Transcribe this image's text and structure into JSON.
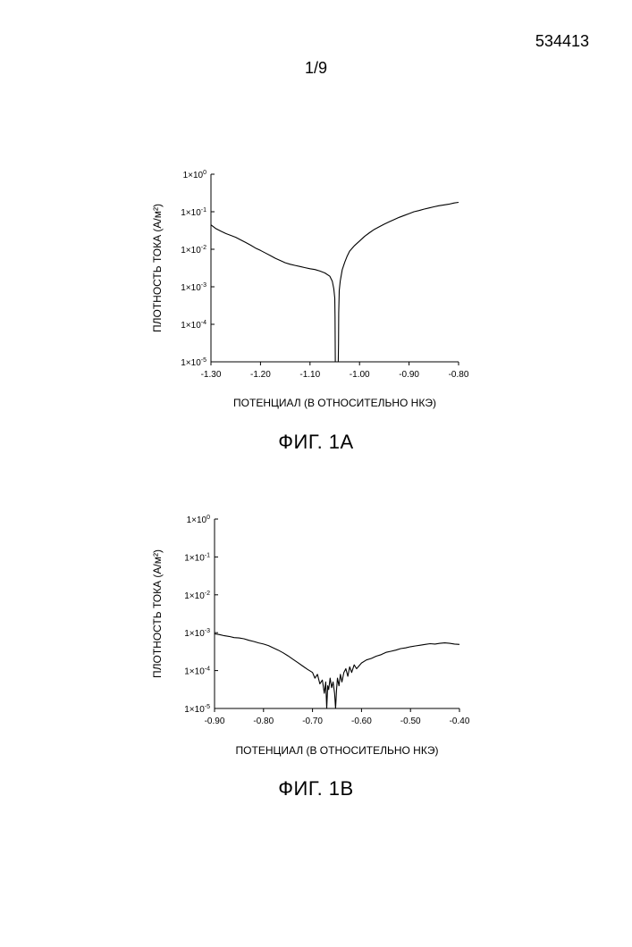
{
  "header": {
    "doc_number": "534413",
    "sheet": "1/9"
  },
  "chart_data": [
    {
      "type": "line",
      "caption": "ФИГ. 1А",
      "xlabel": "ПОТЕНЦИАЛ (В ОТНОСИТЕЛЬНО НКЭ)",
      "ylabel": "ПЛОТНОСТЬ ТОКА (А/м²)",
      "xlim": [
        -1.3,
        -0.8
      ],
      "ylim_log10": [
        -5,
        0
      ],
      "y_scale": "log",
      "x_ticks": [
        "-1.30",
        "-1.20",
        "-1.10",
        "-1.00",
        "-0.90",
        "-0.80"
      ],
      "x_tick_values": [
        -1.3,
        -1.2,
        -1.1,
        -1.0,
        -0.9,
        -0.8
      ],
      "y_ticks": [
        {
          "base": "1×10",
          "exp": "0",
          "value": 0
        },
        {
          "base": "1×10",
          "exp": "-1",
          "value": -1
        },
        {
          "base": "1×10",
          "exp": "-2",
          "value": -2
        },
        {
          "base": "1×10",
          "exp": "-3",
          "value": -3
        },
        {
          "base": "1×10",
          "exp": "-4",
          "value": -4
        },
        {
          "base": "1×10",
          "exp": "-5",
          "value": -5
        }
      ],
      "grid": false,
      "series": [
        {
          "x": [
            -1.3,
            -1.29,
            -1.28,
            -1.27,
            -1.26,
            -1.25,
            -1.24,
            -1.23,
            -1.22,
            -1.21,
            -1.2,
            -1.19,
            -1.18,
            -1.17,
            -1.16,
            -1.15,
            -1.14,
            -1.13,
            -1.12,
            -1.11,
            -1.1,
            -1.09,
            -1.08,
            -1.07,
            -1.06,
            -1.055,
            -1.052,
            -1.05,
            -1.0495,
            -1.049,
            -1.0485,
            -1.045,
            -1.043,
            -1.0425,
            -1.042,
            -1.041,
            -1.039,
            -1.037,
            -1.035,
            -1.03,
            -1.025,
            -1.02,
            -1.01,
            -1.0,
            -0.99,
            -0.98,
            -0.97,
            -0.96,
            -0.95,
            -0.94,
            -0.93,
            -0.92,
            -0.91,
            -0.9,
            -0.89,
            -0.88,
            -0.87,
            -0.86,
            -0.85,
            -0.84,
            -0.83,
            -0.82,
            -0.81,
            -0.8
          ],
          "y_log10": [
            -1.35,
            -1.45,
            -1.52,
            -1.58,
            -1.63,
            -1.68,
            -1.75,
            -1.82,
            -1.89,
            -1.97,
            -2.03,
            -2.1,
            -2.17,
            -2.24,
            -2.3,
            -2.36,
            -2.4,
            -2.43,
            -2.46,
            -2.49,
            -2.52,
            -2.54,
            -2.58,
            -2.63,
            -2.72,
            -2.85,
            -3.05,
            -3.3,
            -3.8,
            -5.0,
            -5.0,
            -5.0,
            -5.0,
            -4.5,
            -3.7,
            -3.1,
            -2.85,
            -2.7,
            -2.55,
            -2.35,
            -2.18,
            -2.05,
            -1.9,
            -1.78,
            -1.66,
            -1.56,
            -1.47,
            -1.4,
            -1.33,
            -1.27,
            -1.21,
            -1.15,
            -1.1,
            -1.05,
            -1.0,
            -0.97,
            -0.93,
            -0.9,
            -0.87,
            -0.84,
            -0.82,
            -0.8,
            -0.77,
            -0.75
          ]
        }
      ]
    },
    {
      "type": "line",
      "caption": "ФИГ. 1В",
      "xlabel": "ПОТЕНЦИАЛ (В ОТНОСИТЕЛЬНО НКЭ)",
      "ylabel": "ПЛОТНОСТЬ ТОКА (А/м²)",
      "xlim": [
        -0.9,
        -0.4
      ],
      "ylim_log10": [
        -5,
        0
      ],
      "y_scale": "log",
      "x_ticks": [
        "-0.90",
        "-0.80",
        "-0.70",
        "-0.60",
        "-0.50",
        "-0.40"
      ],
      "x_tick_values": [
        -0.9,
        -0.8,
        -0.7,
        -0.6,
        -0.5,
        -0.4
      ],
      "y_ticks": [
        {
          "base": "1×10",
          "exp": "0",
          "value": 0
        },
        {
          "base": "1×10",
          "exp": "-1",
          "value": -1
        },
        {
          "base": "1×10",
          "exp": "-2",
          "value": -2
        },
        {
          "base": "1×10",
          "exp": "-3",
          "value": -3
        },
        {
          "base": "1×10",
          "exp": "-4",
          "value": -4
        },
        {
          "base": "1×10",
          "exp": "-5",
          "value": -5
        }
      ],
      "grid": false,
      "series": [
        {
          "x": [
            -0.9,
            -0.89,
            -0.88,
            -0.87,
            -0.86,
            -0.85,
            -0.84,
            -0.83,
            -0.82,
            -0.81,
            -0.8,
            -0.79,
            -0.78,
            -0.77,
            -0.76,
            -0.75,
            -0.74,
            -0.73,
            -0.72,
            -0.71,
            -0.7,
            -0.695,
            -0.69,
            -0.685,
            -0.68,
            -0.676,
            -0.673,
            -0.671,
            -0.669,
            -0.667,
            -0.664,
            -0.661,
            -0.658,
            -0.655,
            -0.653,
            -0.651,
            -0.649,
            -0.646,
            -0.643,
            -0.64,
            -0.636,
            -0.632,
            -0.628,
            -0.624,
            -0.62,
            -0.615,
            -0.61,
            -0.6,
            -0.59,
            -0.58,
            -0.57,
            -0.56,
            -0.55,
            -0.54,
            -0.53,
            -0.52,
            -0.51,
            -0.5,
            -0.49,
            -0.48,
            -0.47,
            -0.46,
            -0.45,
            -0.44,
            -0.43,
            -0.42,
            -0.41,
            -0.4
          ],
          "y_log10": [
            -3.03,
            -3.05,
            -3.08,
            -3.1,
            -3.13,
            -3.14,
            -3.16,
            -3.2,
            -3.23,
            -3.27,
            -3.3,
            -3.34,
            -3.4,
            -3.46,
            -3.53,
            -3.61,
            -3.7,
            -3.79,
            -3.88,
            -3.97,
            -4.05,
            -4.2,
            -4.1,
            -4.35,
            -4.25,
            -4.6,
            -4.3,
            -5.0,
            -4.4,
            -4.5,
            -4.2,
            -4.45,
            -4.3,
            -4.6,
            -5.0,
            -4.5,
            -4.2,
            -4.4,
            -4.1,
            -4.3,
            -4.05,
            -3.95,
            -4.15,
            -3.9,
            -4.05,
            -3.85,
            -3.95,
            -3.8,
            -3.72,
            -3.68,
            -3.62,
            -3.58,
            -3.52,
            -3.49,
            -3.46,
            -3.42,
            -3.4,
            -3.37,
            -3.35,
            -3.33,
            -3.31,
            -3.29,
            -3.3,
            -3.28,
            -3.27,
            -3.28,
            -3.3,
            -3.31
          ]
        }
      ]
    }
  ]
}
